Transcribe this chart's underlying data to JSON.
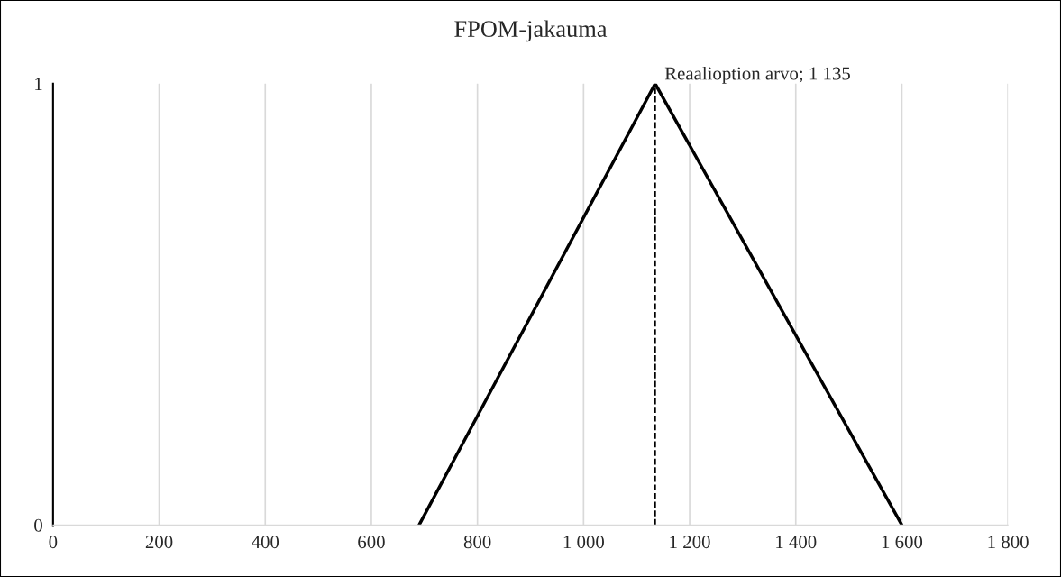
{
  "chart_data": {
    "type": "line",
    "title": "FPOM-jakauma",
    "series": [
      {
        "color": "#000000",
        "x": [
          690,
          1135,
          1600
        ],
        "values": [
          0,
          1,
          0
        ]
      }
    ],
    "xlim": [
      0,
      1800
    ],
    "xticks": [
      0,
      200,
      400,
      600,
      800,
      {
        "value": 1000,
        "label": "1 000"
      },
      {
        "value": 1200,
        "label": "1 200"
      },
      {
        "value": 1400,
        "label": "1 400"
      },
      {
        "value": 1600,
        "label": "1 600"
      },
      {
        "value": 1800,
        "label": "1 800"
      }
    ],
    "ylim": [
      0,
      1
    ],
    "yticks": [
      0,
      1
    ],
    "grid": "x",
    "ref_lines": [
      {
        "axis": "x",
        "value": 1135,
        "label": "Reaalioption arvo; 1 135",
        "color": "#000000",
        "line_style": "dashed"
      }
    ],
    "marker": "none",
    "line_style": "solid",
    "legend": false
  }
}
